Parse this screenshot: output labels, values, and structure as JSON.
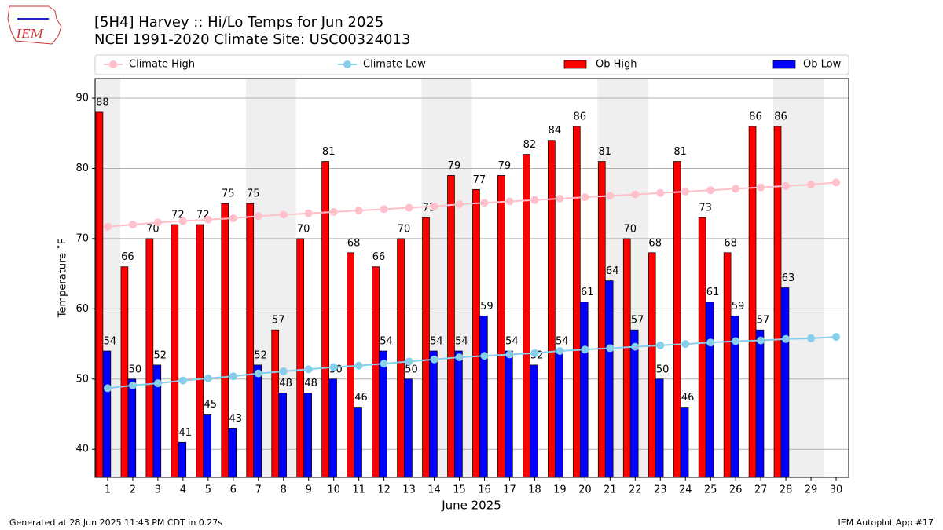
{
  "chart_data": {
    "type": "bar",
    "title": "[5H4] Harvey :: Hi/Lo Temps for Jun 2025",
    "subtitle": "NCEI 1991-2020 Climate Site: USC00324013",
    "logo_text": "IEM",
    "xlabel": "June 2025",
    "ylabel": "Temperature ˚F",
    "footer_left": "Generated at 28 Jun 2025 11:43 PM CDT in 0.27s",
    "footer_right": "IEM Autoplot App #17",
    "x": [
      1,
      2,
      3,
      4,
      5,
      6,
      7,
      8,
      9,
      10,
      11,
      12,
      13,
      14,
      15,
      16,
      17,
      18,
      19,
      20,
      21,
      22,
      23,
      24,
      25,
      26,
      27,
      28,
      29,
      30
    ],
    "xlim": [
      0.5,
      30.5
    ],
    "xticks": [
      1,
      2,
      3,
      4,
      5,
      6,
      7,
      8,
      9,
      10,
      11,
      12,
      13,
      14,
      15,
      16,
      17,
      18,
      19,
      20,
      21,
      22,
      23,
      24,
      25,
      26,
      27,
      28,
      29,
      30
    ],
    "ylim": [
      36,
      92.8
    ],
    "yticks": [
      40,
      50,
      60,
      70,
      80,
      90
    ],
    "grid": true,
    "highlight_days": [
      1,
      7,
      8,
      14,
      15,
      21,
      22,
      28,
      29
    ],
    "highlight_color": "#efefef",
    "series": [
      {
        "name": "Climate High",
        "type": "line",
        "color": "#ffc0cb",
        "values": [
          71.7,
          72.0,
          72.3,
          72.5,
          72.7,
          72.9,
          73.2,
          73.4,
          73.6,
          73.8,
          74.0,
          74.2,
          74.4,
          74.6,
          74.9,
          75.1,
          75.3,
          75.5,
          75.7,
          75.9,
          76.1,
          76.3,
          76.5,
          76.7,
          76.9,
          77.1,
          77.3,
          77.5,
          77.7,
          78.0
        ]
      },
      {
        "name": "Climate Low",
        "type": "line",
        "color": "#87ceeb",
        "values": [
          48.7,
          49.1,
          49.4,
          49.8,
          50.1,
          50.4,
          50.8,
          51.1,
          51.4,
          51.7,
          51.9,
          52.2,
          52.5,
          52.8,
          53.1,
          53.3,
          53.5,
          53.7,
          54.0,
          54.2,
          54.4,
          54.6,
          54.8,
          55.0,
          55.2,
          55.4,
          55.5,
          55.7,
          55.8,
          56.0
        ]
      },
      {
        "name": "Ob High",
        "type": "bar",
        "color": "#ff0000",
        "values": [
          88,
          66,
          70,
          72,
          72,
          75,
          75,
          57,
          70,
          81,
          68,
          66,
          70,
          73,
          79,
          77,
          79,
          82,
          84,
          86,
          81,
          70,
          68,
          81,
          73,
          68,
          86,
          86,
          null,
          null
        ]
      },
      {
        "name": "Ob Low",
        "type": "bar",
        "color": "#0000ff",
        "values": [
          54,
          50,
          52,
          41,
          45,
          43,
          52,
          48,
          48,
          50,
          46,
          54,
          50,
          54,
          54,
          59,
          54,
          52,
          54,
          61,
          64,
          57,
          50,
          46,
          61,
          59,
          57,
          63,
          null,
          null
        ]
      }
    ]
  }
}
